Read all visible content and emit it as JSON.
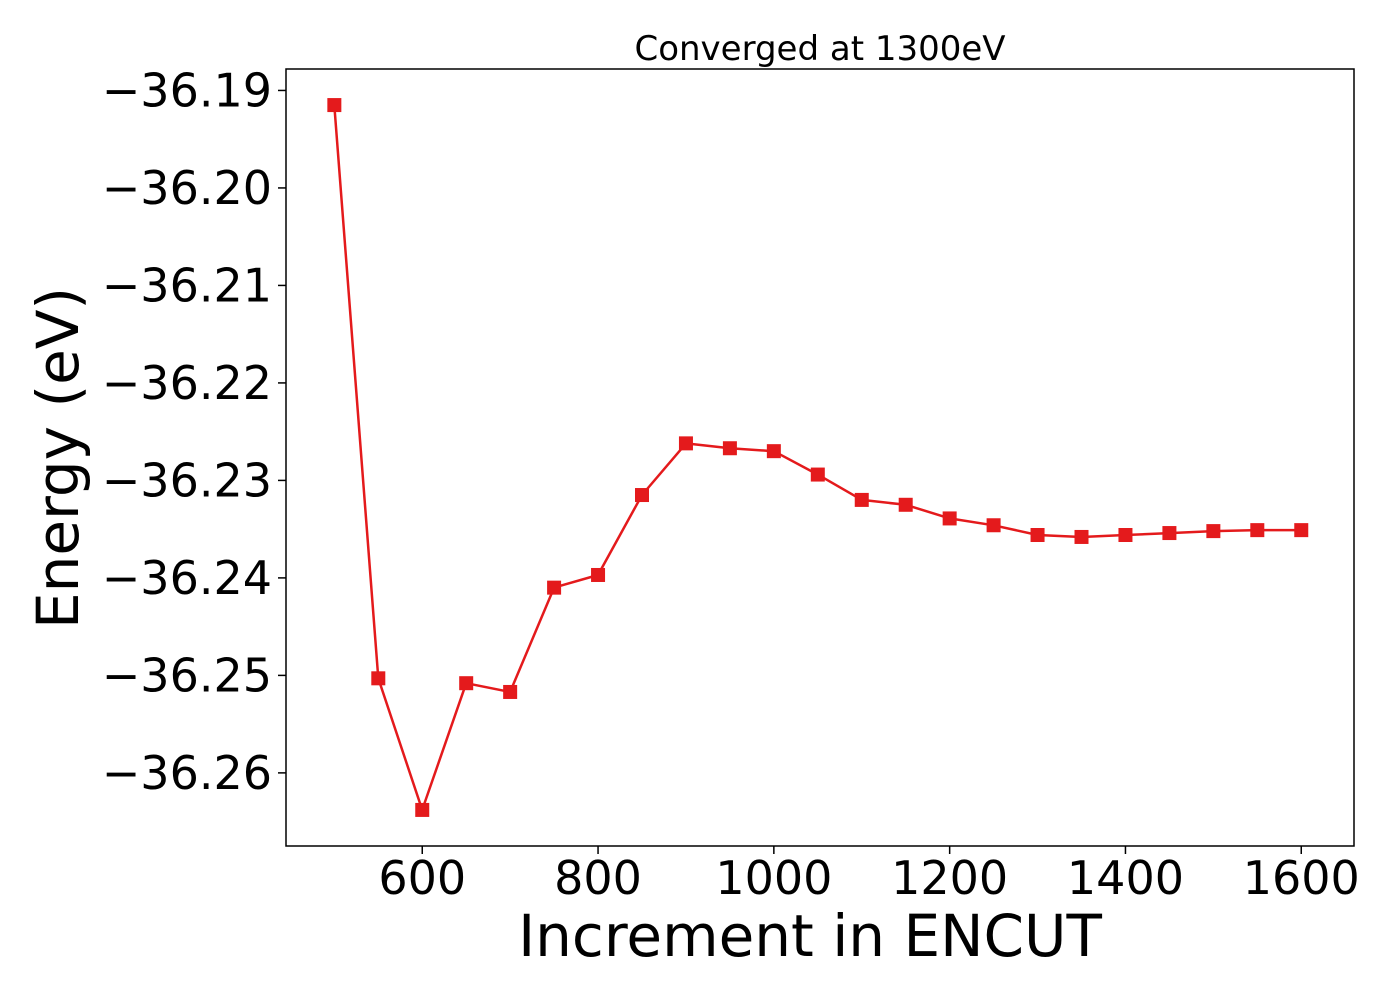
{
  "chart_data": {
    "type": "line",
    "title": "Converged at 1300eV",
    "xlabel": "Increment in ENCUT",
    "ylabel": "Energy (eV)",
    "xlim": [
      445,
      1660
    ],
    "ylim": [
      -36.2675,
      -36.1878
    ],
    "x_ticks": [
      600,
      800,
      1000,
      1200,
      1400,
      1600
    ],
    "x_tick_labels": [
      "600",
      "800",
      "1000",
      "1200",
      "1400",
      "1600"
    ],
    "y_ticks": [
      -36.19,
      -36.2,
      -36.21,
      -36.22,
      -36.23,
      -36.24,
      -36.25,
      -36.26
    ],
    "y_tick_labels": [
      "−36.19",
      "−36.20",
      "−36.21",
      "−36.22",
      "−36.23",
      "−36.24",
      "−36.25",
      "−36.26"
    ],
    "grid": false,
    "series": [
      {
        "color": "#e41a1c",
        "marker": "square",
        "x": [
          500,
          550,
          600,
          650,
          700,
          750,
          800,
          850,
          900,
          950,
          1000,
          1050,
          1100,
          1150,
          1200,
          1250,
          1300,
          1350,
          1400,
          1450,
          1500,
          1550,
          1600
        ],
        "y": [
          -36.1915,
          -36.2503,
          -36.2638,
          -36.2508,
          -36.2517,
          -36.241,
          -36.2397,
          -36.2315,
          -36.2262,
          -36.2267,
          -36.227,
          -36.2294,
          -36.232,
          -36.2325,
          -36.2339,
          -36.2346,
          -36.2356,
          -36.2358,
          -36.2356,
          -36.2354,
          -36.2352,
          -36.2351,
          -36.2351
        ]
      }
    ]
  }
}
